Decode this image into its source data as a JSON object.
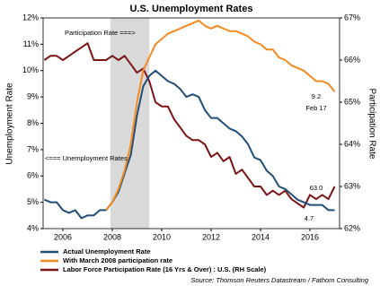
{
  "chart_data": {
    "type": "line",
    "title": "U.S. Unemployment Rates",
    "y_label": "Unemployment Rate",
    "y2_label": "Participation Rate",
    "source": "Source: Thomson Reuters Datastream / Fathom Consulting",
    "xlim": [
      2005.2,
      2017.2
    ],
    "xticks": [
      2006,
      2008,
      2010,
      2012,
      2014,
      2016
    ],
    "ylim": [
      4,
      12
    ],
    "yticks": [
      {
        "value": 4,
        "label": "4%"
      },
      {
        "value": 5,
        "label": "5%"
      },
      {
        "value": 6,
        "label": "6%"
      },
      {
        "value": 7,
        "label": "7%"
      },
      {
        "value": 8,
        "label": "8%"
      },
      {
        "value": 9,
        "label": "9%"
      },
      {
        "value": 10,
        "label": "10%"
      },
      {
        "value": 11,
        "label": "11%"
      },
      {
        "value": 12,
        "label": "12%"
      }
    ],
    "y2lim": [
      62,
      67
    ],
    "y2ticks": [
      {
        "value": 62,
        "label": "62%"
      },
      {
        "value": 63,
        "label": "63%"
      },
      {
        "value": 64,
        "label": "64%"
      },
      {
        "value": 65,
        "label": "65%"
      },
      {
        "value": 66,
        "label": "66%"
      },
      {
        "value": 67,
        "label": "67%"
      }
    ],
    "shaded_region": [
      2007.92,
      2009.5
    ],
    "shade_color": "#d9d9d9",
    "x": [
      2005.25,
      2005.5,
      2005.75,
      2006.0,
      2006.25,
      2006.5,
      2006.75,
      2007.0,
      2007.25,
      2007.5,
      2007.75,
      2008.0,
      2008.25,
      2008.5,
      2008.75,
      2009.0,
      2009.25,
      2009.5,
      2009.75,
      2010.0,
      2010.25,
      2010.5,
      2010.75,
      2011.0,
      2011.25,
      2011.5,
      2011.75,
      2012.0,
      2012.25,
      2012.5,
      2012.75,
      2013.0,
      2013.25,
      2013.5,
      2013.75,
      2014.0,
      2014.25,
      2014.5,
      2014.75,
      2015.0,
      2015.25,
      2015.5,
      2015.75,
      2016.0,
      2016.25,
      2016.5,
      2016.75,
      2017.0
    ],
    "series": [
      {
        "name": "Actual Unemployment Rate",
        "color": "#1f4e79",
        "axis": "y",
        "values": [
          5.1,
          5.0,
          5.0,
          4.7,
          4.6,
          4.7,
          4.4,
          4.5,
          4.5,
          4.7,
          4.7,
          5.0,
          5.4,
          6.1,
          6.8,
          8.3,
          9.4,
          9.8,
          10.0,
          9.8,
          9.6,
          9.5,
          9.3,
          9.0,
          9.1,
          9.0,
          8.5,
          8.2,
          8.2,
          8.0,
          7.8,
          7.7,
          7.5,
          7.2,
          6.7,
          6.6,
          6.2,
          6.0,
          5.6,
          5.5,
          5.3,
          5.1,
          5.0,
          4.9,
          4.9,
          4.9,
          4.7,
          4.7
        ]
      },
      {
        "name": "With March 2008 participation rate",
        "color": "#f28a22",
        "axis": "y",
        "values": [
          null,
          null,
          null,
          null,
          null,
          null,
          null,
          null,
          null,
          null,
          4.7,
          5.0,
          5.5,
          6.2,
          7.2,
          8.8,
          10.0,
          10.5,
          11.0,
          11.2,
          11.4,
          11.5,
          11.6,
          11.7,
          11.8,
          11.9,
          11.7,
          11.6,
          11.7,
          11.6,
          11.5,
          11.5,
          11.4,
          11.3,
          11.1,
          11.0,
          10.8,
          10.8,
          10.5,
          10.4,
          10.2,
          10.1,
          10.0,
          9.8,
          9.6,
          9.6,
          9.5,
          9.2
        ]
      },
      {
        "name": "Labor Force Participation Rate (16 Yrs & Over) : U.S. (RH Scale)",
        "color": "#7b1416",
        "axis": "y2",
        "values": [
          66.0,
          66.1,
          66.1,
          66.0,
          66.1,
          66.2,
          66.3,
          66.4,
          66.0,
          66.0,
          66.0,
          66.1,
          66.0,
          66.1,
          65.9,
          65.7,
          65.8,
          65.5,
          65.0,
          64.9,
          64.9,
          64.6,
          64.4,
          64.2,
          64.1,
          64.1,
          64.0,
          63.7,
          63.8,
          63.6,
          63.7,
          63.3,
          63.4,
          63.2,
          63.0,
          63.0,
          62.8,
          62.9,
          62.8,
          62.9,
          62.7,
          62.6,
          62.5,
          62.8,
          62.7,
          62.8,
          62.7,
          63.0
        ]
      }
    ],
    "annotations": [
      {
        "text": "Participation Rate ===>",
        "color": "#7b1416"
      },
      {
        "text": "<=== Unemployment Rates",
        "color": "#000000"
      },
      {
        "text": "9.2",
        "color": "#f28a22"
      },
      {
        "text": "Feb 17",
        "color": "#f28a22"
      },
      {
        "text": "63.0",
        "color": "#7b1416"
      },
      {
        "text": "4.7",
        "color": "#1f4e79"
      }
    ]
  }
}
